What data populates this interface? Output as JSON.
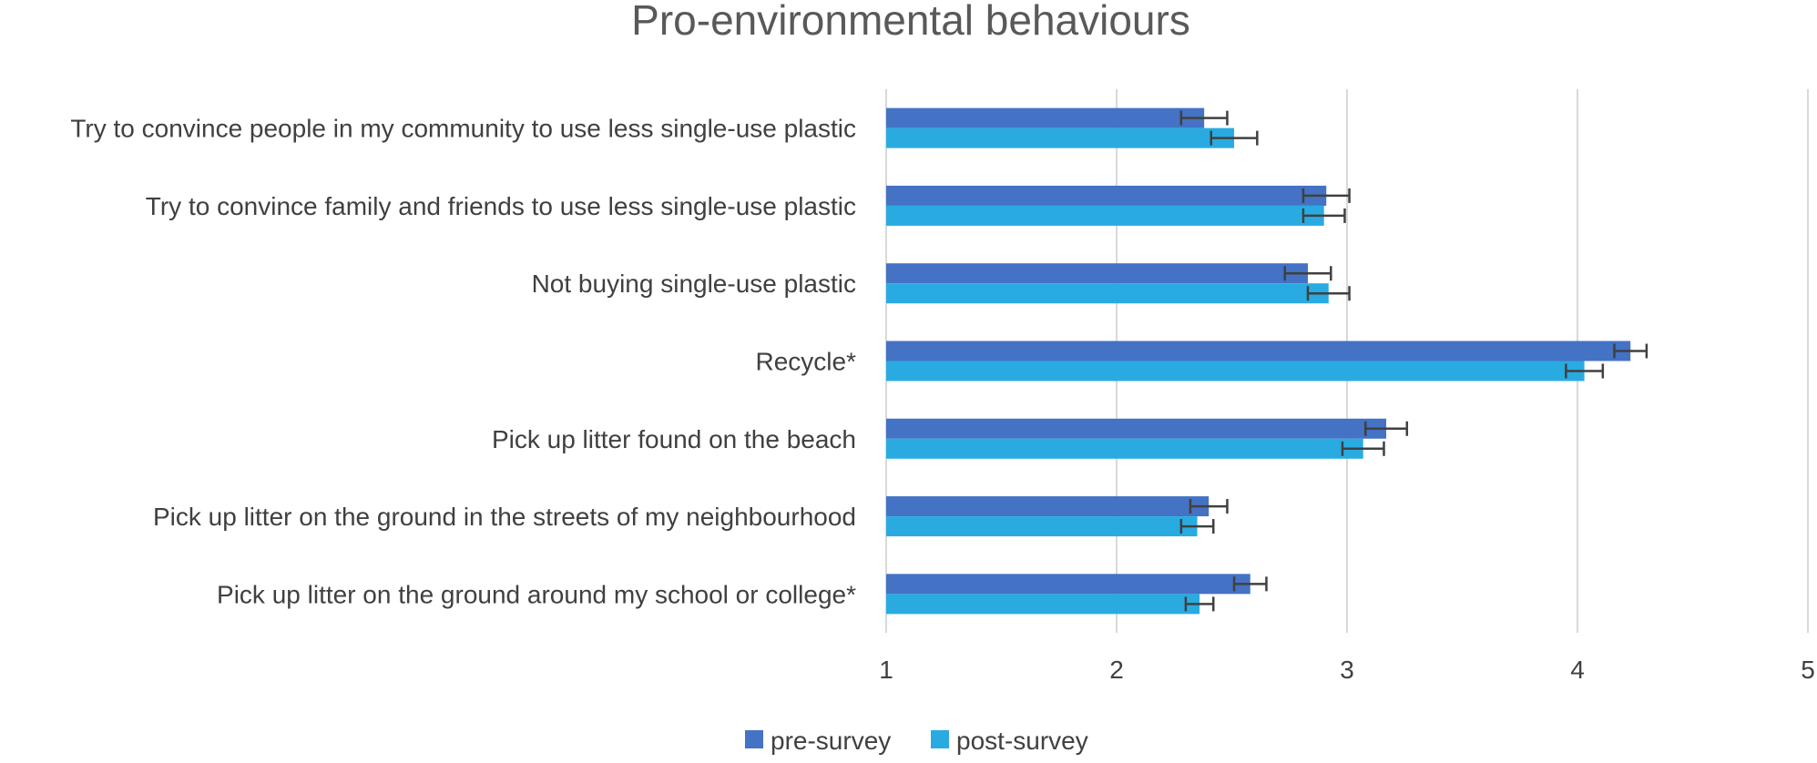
{
  "chart_data": {
    "type": "bar",
    "orientation": "horizontal",
    "title": "Pro-environmental behaviours",
    "categories": [
      "Try to convince people in my community to use less single-use plastic",
      "Try to convince family and friends to use less single-use plastic",
      "Not buying single-use plastic",
      "Recycle*",
      "Pick up litter found on the beach",
      "Pick up litter on the ground in the streets of my neighbourhood",
      "Pick up litter on the ground around my school or college*"
    ],
    "series": [
      {
        "name": "pre-survey",
        "color": "#4472c4",
        "values": [
          2.38,
          2.91,
          2.83,
          4.23,
          3.17,
          2.4,
          2.58
        ],
        "errors": [
          0.1,
          0.1,
          0.1,
          0.07,
          0.09,
          0.08,
          0.07
        ]
      },
      {
        "name": "post-survey",
        "color": "#29abe2",
        "values": [
          2.51,
          2.9,
          2.92,
          4.03,
          3.07,
          2.35,
          2.36
        ],
        "errors": [
          0.1,
          0.09,
          0.09,
          0.08,
          0.09,
          0.07,
          0.06
        ]
      }
    ],
    "xlim": [
      1,
      5
    ],
    "xticks": [
      "1",
      "2",
      "3",
      "4",
      "5"
    ],
    "grid": "vertical",
    "legend": "bottom"
  }
}
